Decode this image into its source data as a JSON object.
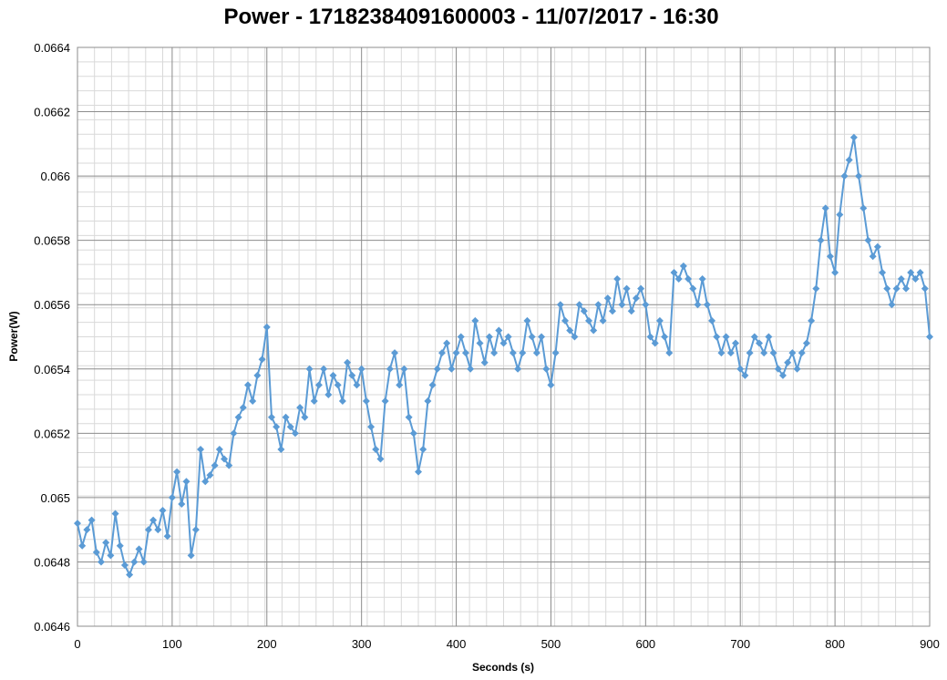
{
  "chart_data": {
    "type": "line",
    "title": "Power - 17182384091600003 - 11/07/2017 - 16:30",
    "xlabel": "Seconds (s)",
    "ylabel": "Power(W)",
    "xlim": [
      0,
      900
    ],
    "ylim": [
      0.0646,
      0.0664
    ],
    "x_ticks": [
      0,
      100,
      200,
      300,
      400,
      500,
      600,
      700,
      800,
      900
    ],
    "y_ticks": [
      "0.0646",
      "0.0648",
      "0.065",
      "0.0652",
      "0.0654",
      "0.0656",
      "0.0658",
      "0.066",
      "0.0662",
      "0.0664"
    ],
    "grid": true,
    "minor_grid": true,
    "marker": "diamond",
    "legend": "none",
    "series_color": "#5b9bd5",
    "series": [
      {
        "x": [
          0,
          5,
          10,
          15,
          20,
          25,
          30,
          35,
          40,
          45,
          50,
          55,
          60,
          65,
          70,
          75,
          80,
          85,
          90,
          95,
          100,
          105,
          110,
          115,
          120,
          125,
          130,
          135,
          140,
          145,
          150,
          155,
          160,
          165,
          170,
          175,
          180,
          185,
          190,
          195,
          200,
          205,
          210,
          215,
          220,
          225,
          230,
          235,
          240,
          245,
          250,
          255,
          260,
          265,
          270,
          275,
          280,
          285,
          290,
          295,
          300,
          305,
          310,
          315,
          320,
          325,
          330,
          335,
          340,
          345,
          350,
          355,
          360,
          365,
          370,
          375,
          380,
          385,
          390,
          395,
          400,
          405,
          410,
          415,
          420,
          425,
          430,
          435,
          440,
          445,
          450,
          455,
          460,
          465,
          470,
          475,
          480,
          485,
          490,
          495,
          500,
          505,
          510,
          515,
          520,
          525,
          530,
          535,
          540,
          545,
          550,
          555,
          560,
          565,
          570,
          575,
          580,
          585,
          590,
          595,
          600,
          605,
          610,
          615,
          620,
          625,
          630,
          635,
          640,
          645,
          650,
          655,
          660,
          665,
          670,
          675,
          680,
          685,
          690,
          695,
          700,
          705,
          710,
          715,
          720,
          725,
          730,
          735,
          740,
          745,
          750,
          755,
          760,
          765,
          770,
          775,
          780,
          785,
          790,
          795,
          800,
          805,
          810,
          815,
          820,
          825,
          830,
          835,
          840,
          845,
          850,
          855,
          860,
          865,
          870,
          875,
          880,
          885,
          890,
          895,
          900
        ],
        "values": [
          0.06492,
          0.06485,
          0.0649,
          0.06493,
          0.06483,
          0.0648,
          0.06486,
          0.06482,
          0.06495,
          0.06485,
          0.06479,
          0.06476,
          0.0648,
          0.06484,
          0.0648,
          0.0649,
          0.06493,
          0.0649,
          0.06496,
          0.06488,
          0.065,
          0.06508,
          0.06498,
          0.06505,
          0.06482,
          0.0649,
          0.06515,
          0.06505,
          0.06507,
          0.0651,
          0.06515,
          0.06512,
          0.0651,
          0.0652,
          0.06525,
          0.06528,
          0.06535,
          0.0653,
          0.06538,
          0.06543,
          0.06553,
          0.06525,
          0.06522,
          0.06515,
          0.06525,
          0.06522,
          0.0652,
          0.06528,
          0.06525,
          0.0654,
          0.0653,
          0.06535,
          0.0654,
          0.06532,
          0.06538,
          0.06535,
          0.0653,
          0.06542,
          0.06538,
          0.06535,
          0.0654,
          0.0653,
          0.06522,
          0.06515,
          0.06512,
          0.0653,
          0.0654,
          0.06545,
          0.06535,
          0.0654,
          0.06525,
          0.0652,
          0.06508,
          0.06515,
          0.0653,
          0.06535,
          0.0654,
          0.06545,
          0.06548,
          0.0654,
          0.06545,
          0.0655,
          0.06545,
          0.0654,
          0.06555,
          0.06548,
          0.06542,
          0.0655,
          0.06545,
          0.06552,
          0.06548,
          0.0655,
          0.06545,
          0.0654,
          0.06545,
          0.06555,
          0.0655,
          0.06545,
          0.0655,
          0.0654,
          0.06535,
          0.06545,
          0.0656,
          0.06555,
          0.06552,
          0.0655,
          0.0656,
          0.06558,
          0.06555,
          0.06552,
          0.0656,
          0.06555,
          0.06562,
          0.06558,
          0.06568,
          0.0656,
          0.06565,
          0.06558,
          0.06562,
          0.06565,
          0.0656,
          0.0655,
          0.06548,
          0.06555,
          0.0655,
          0.06545,
          0.0657,
          0.06568,
          0.06572,
          0.06568,
          0.06565,
          0.0656,
          0.06568,
          0.0656,
          0.06555,
          0.0655,
          0.06545,
          0.0655,
          0.06545,
          0.06548,
          0.0654,
          0.06538,
          0.06545,
          0.0655,
          0.06548,
          0.06545,
          0.0655,
          0.06545,
          0.0654,
          0.06538,
          0.06542,
          0.06545,
          0.0654,
          0.06545,
          0.06548,
          0.06555,
          0.06565,
          0.0658,
          0.0659,
          0.06575,
          0.0657,
          0.06588,
          0.066,
          0.06605,
          0.06612,
          0.066,
          0.0659,
          0.0658,
          0.06575,
          0.06578,
          0.0657,
          0.06565,
          0.0656,
          0.06565,
          0.06568,
          0.06565,
          0.0657,
          0.06568,
          0.0657,
          0.06565,
          0.0655
        ]
      }
    ]
  }
}
